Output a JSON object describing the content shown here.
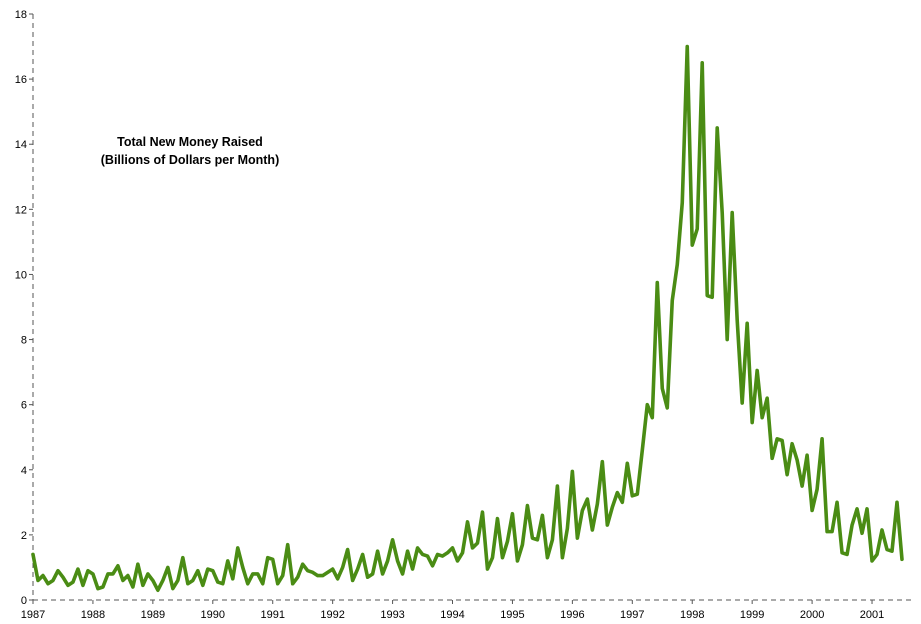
{
  "chart_data": {
    "type": "line",
    "title_lines": [
      "Total New Money Raised",
      "(Billions of Dollars per Month)"
    ],
    "xlabel": "",
    "ylabel": "",
    "x_range": [
      1987.0,
      2001.667
    ],
    "ylim": [
      0,
      18
    ],
    "y_ticks": [
      0,
      2,
      4,
      6,
      8,
      10,
      12,
      14,
      16,
      18
    ],
    "x_ticks": [
      "1987",
      "1988",
      "1989",
      "1990",
      "1991",
      "1992",
      "1993",
      "1994",
      "1995",
      "1996",
      "1997",
      "1998",
      "1999",
      "2000",
      "2001"
    ],
    "x_start": "1987-01",
    "frequency": "monthly",
    "grid": false,
    "axis_style": "dashed",
    "line_color": "#4a8c14",
    "values": [
      1.4,
      0.6,
      0.75,
      0.5,
      0.6,
      0.9,
      0.7,
      0.45,
      0.55,
      0.95,
      0.45,
      0.9,
      0.8,
      0.35,
      0.4,
      0.8,
      0.8,
      1.05,
      0.6,
      0.75,
      0.4,
      1.1,
      0.45,
      0.8,
      0.6,
      0.3,
      0.6,
      1.0,
      0.35,
      0.6,
      1.3,
      0.5,
      0.6,
      0.9,
      0.45,
      0.95,
      0.9,
      0.55,
      0.5,
      1.2,
      0.65,
      1.6,
      1.0,
      0.5,
      0.8,
      0.8,
      0.5,
      1.3,
      1.25,
      0.5,
      0.75,
      1.7,
      0.5,
      0.7,
      1.1,
      0.9,
      0.85,
      0.75,
      0.75,
      0.85,
      0.95,
      0.65,
      1.0,
      1.55,
      0.6,
      0.95,
      1.4,
      0.7,
      0.8,
      1.5,
      0.8,
      1.2,
      1.85,
      1.2,
      0.8,
      1.5,
      0.95,
      1.6,
      1.4,
      1.35,
      1.05,
      1.4,
      1.35,
      1.45,
      1.6,
      1.2,
      1.45,
      2.4,
      1.6,
      1.75,
      2.7,
      0.95,
      1.3,
      2.5,
      1.3,
      1.8,
      2.65,
      1.2,
      1.7,
      2.9,
      1.9,
      1.85,
      2.6,
      1.3,
      1.85,
      3.5,
      1.3,
      2.2,
      3.95,
      1.9,
      2.75,
      3.1,
      2.15,
      2.95,
      4.25,
      2.3,
      2.85,
      3.3,
      3.0,
      4.2,
      3.2,
      3.25,
      4.6,
      6.0,
      5.6,
      9.75,
      6.5,
      5.9,
      9.2,
      10.3,
      12.2,
      17.0,
      10.9,
      11.4,
      16.5,
      9.35,
      9.3,
      14.5,
      11.9,
      8.0,
      11.9,
      8.6,
      6.05,
      8.5,
      5.45,
      7.05,
      5.6,
      6.2,
      4.35,
      4.95,
      4.9,
      3.85,
      4.8,
      4.3,
      3.5,
      4.45,
      2.75,
      3.4,
      4.95,
      2.1,
      2.1,
      3.0,
      1.45,
      1.4,
      2.3,
      2.8,
      2.05,
      2.8,
      1.2,
      1.4,
      2.15,
      1.55,
      1.5,
      3.0,
      1.25
    ]
  }
}
